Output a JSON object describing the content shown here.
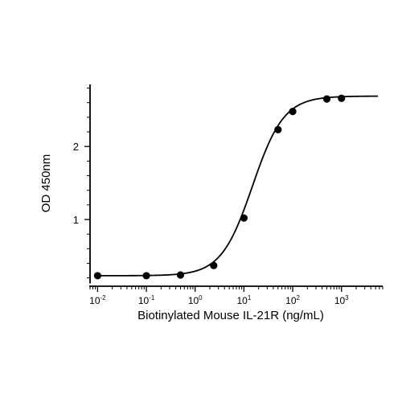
{
  "chart_data": {
    "type": "scatter",
    "title": "",
    "xlabel": "Biotinylated Mouse IL-21R (ng/mL)",
    "ylabel": "OD 450nm",
    "x_scale": "log",
    "xlim": [
      0.007,
      7000
    ],
    "ylim": [
      0.13,
      2.85
    ],
    "x_ticks": [
      {
        "base": "10",
        "exp": "-2"
      },
      {
        "base": "10",
        "exp": "-1"
      },
      {
        "base": "10",
        "exp": "0"
      },
      {
        "base": "10",
        "exp": "1"
      },
      {
        "base": "10",
        "exp": "2"
      },
      {
        "base": "10",
        "exp": "3"
      }
    ],
    "x_tick_values": [
      0.01,
      0.1,
      1,
      10,
      100,
      1000
    ],
    "y_ticks": [
      "1",
      "2"
    ],
    "y_tick_values": [
      1,
      2
    ],
    "grid": false,
    "legend": "none",
    "series": [
      {
        "x": [
          0.01,
          0.1,
          0.5,
          2.4,
          10,
          50,
          100,
          500,
          1000
        ],
        "y": [
          0.23,
          0.23,
          0.24,
          0.37,
          1.02,
          2.23,
          2.48,
          2.65,
          2.66
        ]
      }
    ],
    "fit": {
      "model": "4PL",
      "bottom": 0.23,
      "top": 2.69,
      "ec50": 15,
      "hill": 1.35
    },
    "colors": {
      "axis": "#000000",
      "points": "#000000",
      "curve": "#000000"
    }
  }
}
